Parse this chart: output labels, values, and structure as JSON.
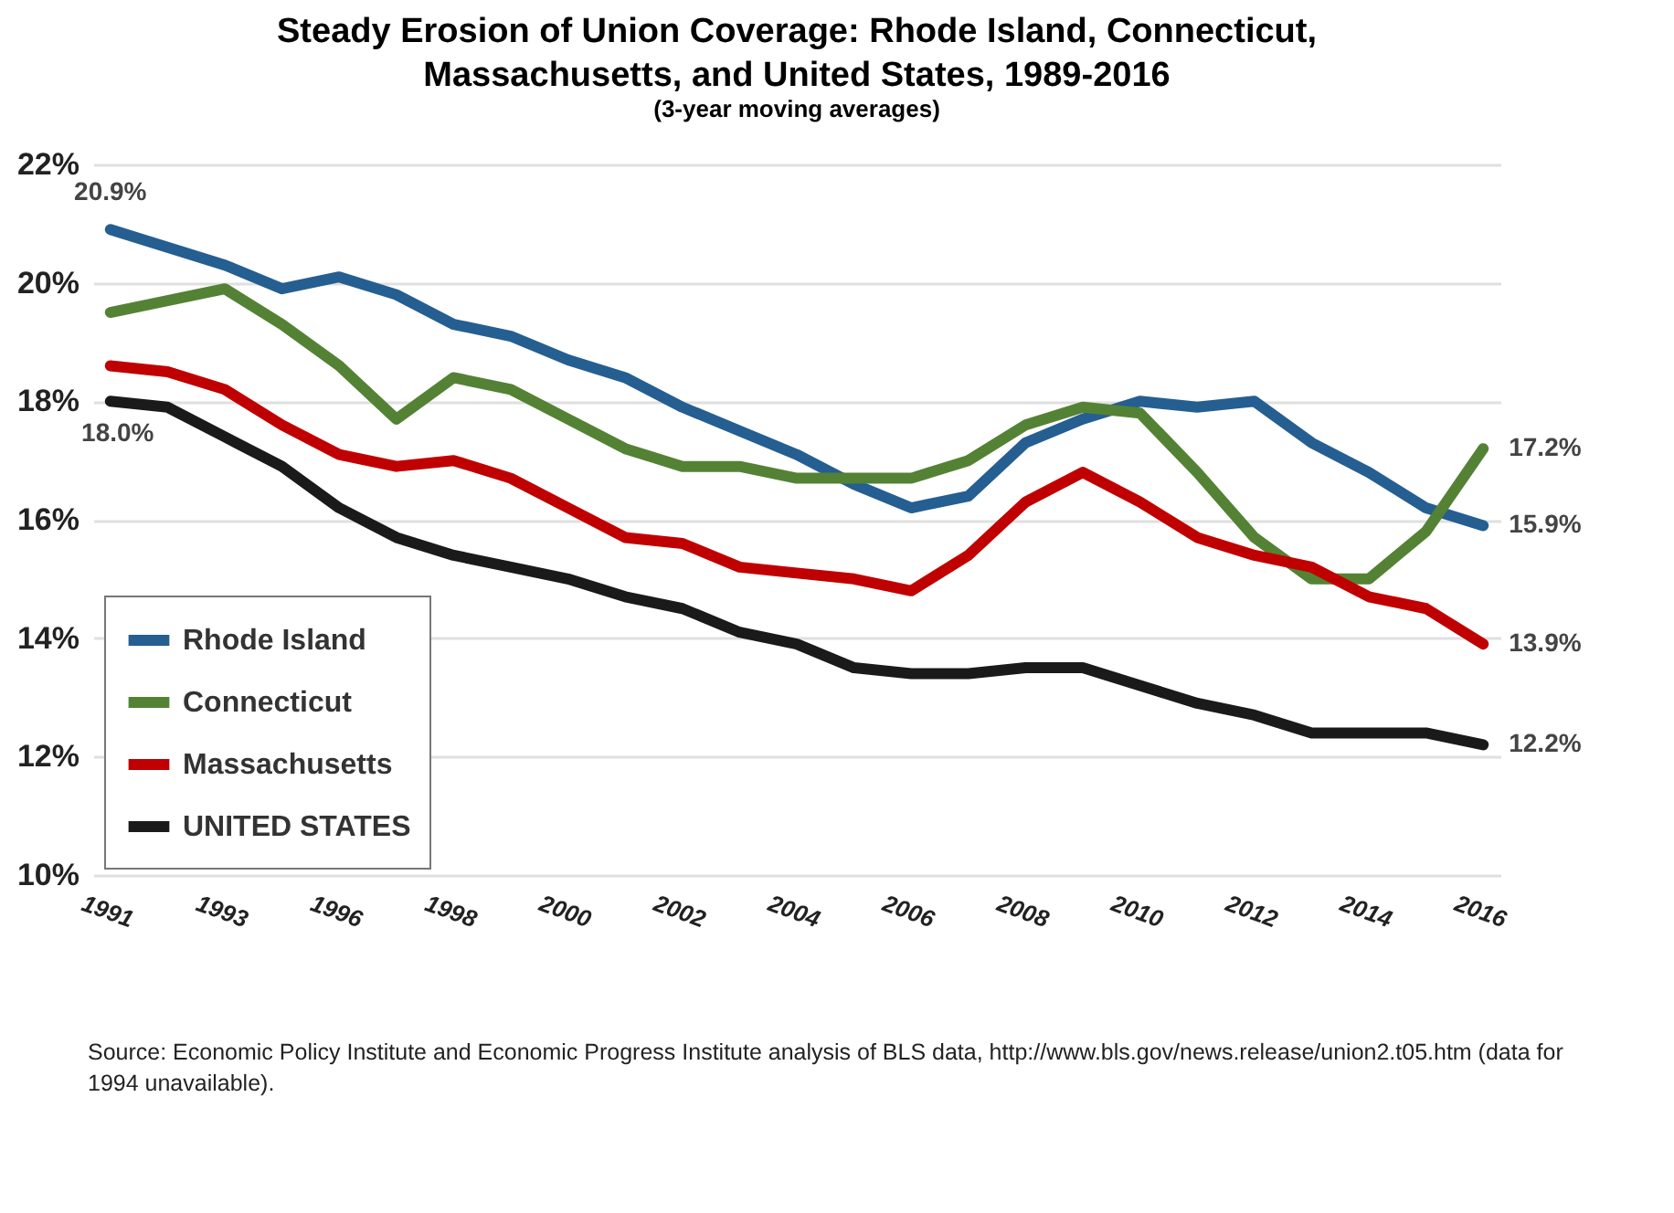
{
  "chart_data": {
    "type": "line",
    "title": "Steady Erosion of Union Coverage: Rhode Island, Connecticut, Massachusetts, and United States, 1989-2016",
    "subtitle": "(3-year moving averages)",
    "categories": [
      "1991",
      null,
      "1993",
      null,
      "1996",
      null,
      "1998",
      null,
      "2000",
      null,
      "2002",
      null,
      "2004",
      null,
      "2006",
      null,
      "2008",
      null,
      "2010",
      null,
      "2012",
      null,
      "2014",
      null,
      "2016"
    ],
    "series": [
      {
        "name": "Rhode Island",
        "color": "#255e91",
        "values": [
          20.9,
          20.6,
          20.3,
          19.9,
          20.1,
          19.8,
          19.3,
          19.1,
          18.7,
          18.4,
          17.9,
          17.5,
          17.1,
          16.6,
          16.2,
          16.4,
          17.3,
          17.7,
          18.0,
          17.9,
          18.0,
          17.3,
          16.8,
          16.2,
          15.9
        ],
        "value_labels": [
          "20.9%",
          null,
          null,
          null,
          null,
          null,
          null,
          null,
          null,
          null,
          null,
          null,
          null,
          null,
          null,
          null,
          null,
          null,
          null,
          null,
          null,
          null,
          null,
          null,
          "15.9%"
        ]
      },
      {
        "name": "Connecticut",
        "color": "#548235",
        "values": [
          19.5,
          19.7,
          19.9,
          19.3,
          18.6,
          17.7,
          18.4,
          18.2,
          17.7,
          17.2,
          16.9,
          16.9,
          16.7,
          16.7,
          16.7,
          17.0,
          17.6,
          17.9,
          17.8,
          16.8,
          15.7,
          15.0,
          15.0,
          15.8,
          17.2
        ],
        "value_labels": [
          null,
          null,
          null,
          null,
          null,
          null,
          null,
          null,
          null,
          null,
          null,
          null,
          null,
          null,
          null,
          null,
          null,
          null,
          null,
          null,
          null,
          null,
          null,
          null,
          "17.2%"
        ]
      },
      {
        "name": "Massachusetts",
        "color": "#c00000",
        "values": [
          18.6,
          18.5,
          18.2,
          17.6,
          17.1,
          16.9,
          17.0,
          16.7,
          16.2,
          15.7,
          15.6,
          15.2,
          15.1,
          15.0,
          14.8,
          15.4,
          16.3,
          16.8,
          16.3,
          15.7,
          15.4,
          15.2,
          14.7,
          14.5,
          13.9
        ],
        "value_labels": [
          null,
          null,
          null,
          null,
          null,
          null,
          null,
          null,
          null,
          null,
          null,
          null,
          null,
          null,
          null,
          null,
          null,
          null,
          null,
          null,
          null,
          null,
          null,
          null,
          "13.9%"
        ]
      },
      {
        "name": "UNITED STATES",
        "color": "#1a1a1a",
        "values": [
          18.0,
          17.9,
          17.4,
          16.9,
          16.2,
          15.7,
          15.4,
          15.2,
          15.0,
          14.7,
          14.5,
          14.1,
          13.9,
          13.5,
          13.4,
          13.4,
          13.5,
          13.5,
          13.2,
          12.9,
          12.7,
          12.4,
          12.4,
          12.4,
          12.2
        ],
        "value_labels": [
          "18.0%",
          null,
          null,
          null,
          null,
          null,
          null,
          null,
          null,
          null,
          null,
          null,
          null,
          null,
          null,
          null,
          null,
          null,
          null,
          null,
          null,
          null,
          null,
          null,
          "12.2%"
        ]
      }
    ],
    "ylim": [
      10,
      22
    ],
    "yticks": [
      {
        "value": 10,
        "label": "10%"
      },
      {
        "value": 12,
        "label": "12%"
      },
      {
        "value": 14,
        "label": "14%"
      },
      {
        "value": 16,
        "label": "16%"
      },
      {
        "value": 18,
        "label": "18%"
      },
      {
        "value": 20,
        "label": "20%"
      },
      {
        "value": 22,
        "label": "22%"
      }
    ],
    "grid": "y",
    "legend": "bottom left",
    "annotations": [
      "Source: Economic Policy Institute and Economic Progress Institute analysis of BLS data, http://www.bls.gov/news.release/union2.t05.htm (data for 1994 unavailable)."
    ]
  }
}
